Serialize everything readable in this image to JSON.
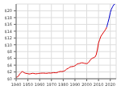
{
  "chart_data": {
    "type": "line",
    "series": [
      {
        "color": "#dd0000",
        "x": [
          1940,
          1941,
          1942,
          1943,
          1944,
          1945,
          1946,
          1947,
          1948,
          1949,
          1950,
          1951,
          1952,
          1953,
          1954,
          1955,
          1956,
          1957,
          1958,
          1959,
          1960,
          1961,
          1962,
          1963,
          1964,
          1965,
          1966,
          1967,
          1968,
          1969,
          1970,
          1971,
          1972,
          1973,
          1974,
          1975,
          1976,
          1977,
          1978,
          1979,
          1980,
          1981,
          1982,
          1983,
          1984,
          1985,
          1986,
          1987,
          1988,
          1989,
          1990,
          1991,
          1992,
          1993,
          1994,
          1995,
          1996,
          1997,
          1998,
          1999,
          2000,
          2001,
          2002,
          2003,
          2004,
          2005,
          2006,
          2007,
          2008,
          2009,
          2010,
          2011,
          2012,
          2013,
          2014,
          2015,
          2016,
          2017
        ],
        "values": [
          0.43,
          0.55,
          0.79,
          1.36,
          1.77,
          2.1,
          2.0,
          1.75,
          1.6,
          1.55,
          1.5,
          1.4,
          1.45,
          1.52,
          1.6,
          1.55,
          1.48,
          1.45,
          1.5,
          1.55,
          1.6,
          1.62,
          1.65,
          1.65,
          1.65,
          1.6,
          1.6,
          1.65,
          1.7,
          1.65,
          1.7,
          1.75,
          1.8,
          1.78,
          1.75,
          1.85,
          2.0,
          2.1,
          2.15,
          2.1,
          2.2,
          2.3,
          2.55,
          2.85,
          3.0,
          3.25,
          3.5,
          3.55,
          3.6,
          3.65,
          3.85,
          4.1,
          4.35,
          4.45,
          4.5,
          4.65,
          4.7,
          4.65,
          4.55,
          4.5,
          4.45,
          4.6,
          5.0,
          5.5,
          5.9,
          6.1,
          6.2,
          6.4,
          7.0,
          8.5,
          10.5,
          11.5,
          12.5,
          13.0,
          13.5,
          14.0,
          14.5,
          15.2
        ]
      },
      {
        "color": "#0000cc",
        "x": [
          2017,
          2018,
          2019,
          2020,
          2021,
          2022,
          2023,
          2024
        ],
        "values": [
          15.2,
          16.5,
          17.8,
          19.5,
          20.5,
          21.2,
          21.8,
          22.0
        ]
      }
    ],
    "xlim": [
      1940,
      2025
    ],
    "xticks": [
      1940,
      1950,
      1960,
      1970,
      1980,
      1990,
      2000,
      2010,
      2020
    ],
    "ylim": [
      0,
      22
    ],
    "yticks": [
      {
        "value": 0,
        "label": "$0"
      },
      {
        "value": 2,
        "label": "$2"
      },
      {
        "value": 4,
        "label": "$4"
      },
      {
        "value": 6,
        "label": "$6"
      },
      {
        "value": 8,
        "label": "$8"
      },
      {
        "value": 10,
        "label": "$10"
      },
      {
        "value": 12,
        "label": "$12"
      },
      {
        "value": 14,
        "label": "$14"
      },
      {
        "value": 16,
        "label": "$16"
      },
      {
        "value": 18,
        "label": "$18"
      },
      {
        "value": 20,
        "label": "$20"
      }
    ],
    "grid": true
  }
}
